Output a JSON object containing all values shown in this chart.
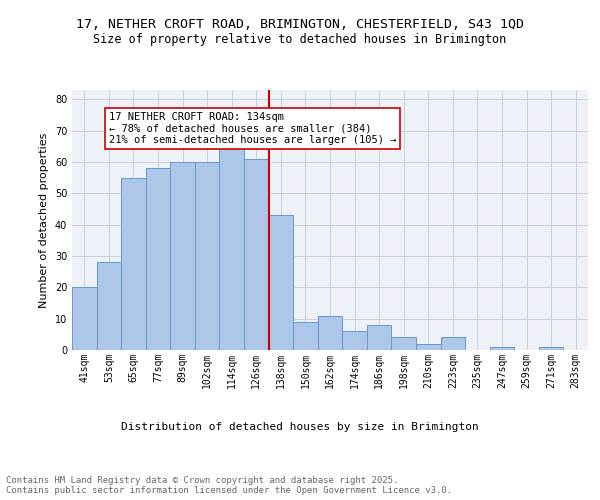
{
  "title1": "17, NETHER CROFT ROAD, BRIMINGTON, CHESTERFIELD, S43 1QD",
  "title2": "Size of property relative to detached houses in Brimington",
  "xlabel": "Distribution of detached houses by size in Brimington",
  "ylabel": "Number of detached properties",
  "bar_labels": [
    "41sqm",
    "53sqm",
    "65sqm",
    "77sqm",
    "89sqm",
    "102sqm",
    "114sqm",
    "126sqm",
    "138sqm",
    "150sqm",
    "162sqm",
    "174sqm",
    "186sqm",
    "198sqm",
    "210sqm",
    "223sqm",
    "235sqm",
    "247sqm",
    "259sqm",
    "271sqm",
    "283sqm"
  ],
  "bar_values": [
    20,
    28,
    55,
    58,
    60,
    60,
    65,
    61,
    43,
    9,
    11,
    6,
    8,
    4,
    2,
    4,
    0,
    1,
    0,
    1,
    0
  ],
  "bar_color": "#aec6e8",
  "bar_edgecolor": "#5b9bd5",
  "vline_x": 7.5,
  "vline_color": "#cc0000",
  "annotation_text": "17 NETHER CROFT ROAD: 134sqm\n← 78% of detached houses are smaller (384)\n21% of semi-detached houses are larger (105) →",
  "annotation_box_edgecolor": "#cc0000",
  "annotation_box_facecolor": "#ffffff",
  "ylim": [
    0,
    83
  ],
  "yticks": [
    0,
    10,
    20,
    30,
    40,
    50,
    60,
    70,
    80
  ],
  "grid_color": "#c8d0dc",
  "background_color": "#eef2f8",
  "footer_text": "Contains HM Land Registry data © Crown copyright and database right 2025.\nContains public sector information licensed under the Open Government Licence v3.0.",
  "title_fontsize": 9.5,
  "subtitle_fontsize": 8.5,
  "axis_label_fontsize": 8,
  "tick_fontsize": 7,
  "annotation_fontsize": 7.5,
  "footer_fontsize": 6.5
}
